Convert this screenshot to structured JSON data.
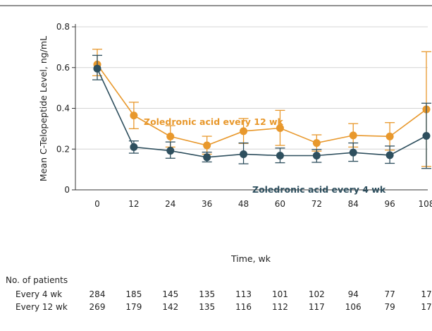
{
  "colors": {
    "every12": "#e8982c",
    "every4": "#2e4f5e",
    "axis": "#333333",
    "grid": "#d4d4d4",
    "topRule": "#222222"
  },
  "chart_data": {
    "type": "line",
    "xlabel": "Time, wk",
    "ylabel": "Mean C-Telopeptide Level, ng/mL",
    "x": [
      0,
      12,
      24,
      36,
      48,
      60,
      72,
      84,
      96,
      108
    ],
    "xticks": [
      "0",
      "12",
      "24",
      "36",
      "48",
      "60",
      "72",
      "84",
      "96",
      "108"
    ],
    "yticks": [
      "0",
      "0.2",
      "0.4",
      "0.6",
      "0.8"
    ],
    "ylim": [
      0,
      0.8
    ],
    "grid": "horizontal",
    "series": [
      {
        "name": "Zoledronic acid every 12 wk",
        "color_key": "every12",
        "values": [
          0.615,
          0.365,
          0.262,
          0.218,
          0.288,
          0.303,
          0.23,
          0.267,
          0.262,
          0.395
        ],
        "upper": [
          0.69,
          0.43,
          0.315,
          0.263,
          0.35,
          0.39,
          0.27,
          0.325,
          0.33,
          0.678
        ],
        "lower": [
          0.56,
          0.3,
          0.21,
          0.175,
          0.228,
          0.218,
          0.19,
          0.21,
          0.195,
          0.115
        ]
      },
      {
        "name": "Zoledronic acid every 4 wk",
        "color_key": "every4",
        "values": [
          0.595,
          0.21,
          0.192,
          0.16,
          0.175,
          0.168,
          0.168,
          0.183,
          0.17,
          0.265
        ],
        "upper": [
          0.66,
          0.24,
          0.235,
          0.185,
          0.23,
          0.205,
          0.198,
          0.23,
          0.215,
          0.425
        ],
        "lower": [
          0.54,
          0.18,
          0.155,
          0.137,
          0.128,
          0.133,
          0.135,
          0.14,
          0.13,
          0.105
        ]
      }
    ],
    "annotations": {
      "every12": "Zoledronic acid every 12 wk",
      "every4": "Zoledronic acid every 4 wk"
    },
    "patients_table": {
      "title": "No. of patients",
      "rows": [
        {
          "label": "Every 4 wk",
          "values": [
            "284",
            "185",
            "145",
            "135",
            "113",
            "101",
            "102",
            "94",
            "77",
            "17"
          ]
        },
        {
          "label": "Every 12 wk",
          "values": [
            "269",
            "179",
            "142",
            "135",
            "116",
            "112",
            "117",
            "106",
            "79",
            "17"
          ]
        }
      ]
    }
  }
}
